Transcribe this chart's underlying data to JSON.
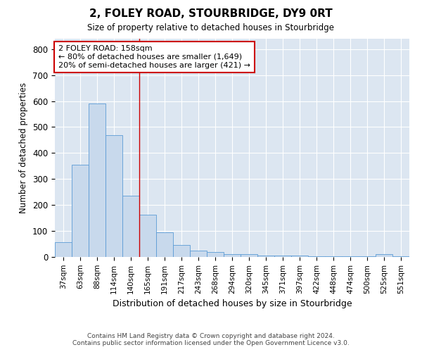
{
  "title": "2, FOLEY ROAD, STOURBRIDGE, DY9 0RT",
  "subtitle": "Size of property relative to detached houses in Stourbridge",
  "xlabel": "Distribution of detached houses by size in Stourbridge",
  "ylabel": "Number of detached properties",
  "bar_color": "#c8d9ec",
  "bar_edge_color": "#5b9bd5",
  "background_color": "#dce6f1",
  "grid_color": "#ffffff",
  "figure_bg": "#ffffff",
  "categories": [
    "37sqm",
    "63sqm",
    "88sqm",
    "114sqm",
    "140sqm",
    "165sqm",
    "191sqm",
    "217sqm",
    "243sqm",
    "268sqm",
    "294sqm",
    "320sqm",
    "345sqm",
    "371sqm",
    "397sqm",
    "422sqm",
    "448sqm",
    "474sqm",
    "500sqm",
    "525sqm",
    "551sqm"
  ],
  "values": [
    57,
    355,
    590,
    470,
    235,
    163,
    95,
    47,
    25,
    18,
    10,
    10,
    5,
    5,
    5,
    2,
    2,
    2,
    2,
    10,
    2
  ],
  "ylim": [
    0,
    840
  ],
  "yticks": [
    0,
    100,
    200,
    300,
    400,
    500,
    600,
    700,
    800
  ],
  "property_line_x": 5.0,
  "property_line_color": "#cc0000",
  "annotation_line1": "2 FOLEY ROAD: 158sqm",
  "annotation_line2": "← 80% of detached houses are smaller (1,649)",
  "annotation_line3": "20% of semi-detached houses are larger (421) →",
  "annotation_box_color": "#ffffff",
  "annotation_box_edge_color": "#cc0000",
  "footer_line1": "Contains HM Land Registry data © Crown copyright and database right 2024.",
  "footer_line2": "Contains public sector information licensed under the Open Government Licence v3.0."
}
